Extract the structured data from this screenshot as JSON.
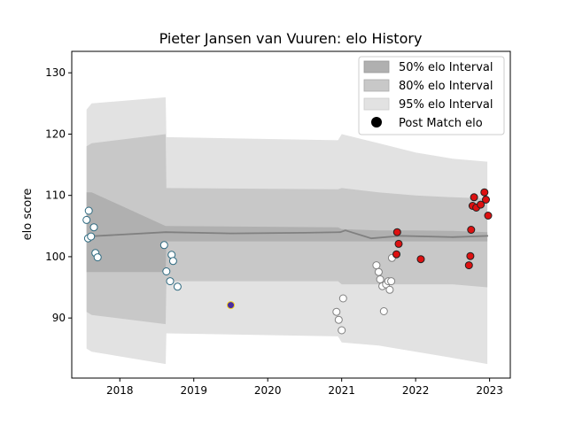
{
  "chart_data": {
    "type": "scatter",
    "title": "Pieter Jansen van Vuuren: elo History",
    "xlabel": "",
    "ylabel": "elo score",
    "xlim": [
      2017.35,
      2023.28
    ],
    "ylim": [
      80.2,
      133.5
    ],
    "xticks": [
      2018,
      2019,
      2020,
      2021,
      2022,
      2023
    ],
    "xtick_labels": [
      "2018",
      "2019",
      "2020",
      "2021",
      "2022",
      "2023"
    ],
    "yticks": [
      90,
      100,
      110,
      120,
      130
    ],
    "ytick_labels": [
      "90",
      "100",
      "110",
      "120",
      "130"
    ],
    "grid": false,
    "legend_position": "top-right",
    "legend": [
      {
        "label": "50% elo Interval",
        "kind": "patch",
        "color": "#b0b0b0"
      },
      {
        "label": "80% elo Interval",
        "kind": "patch",
        "color": "#c8c8c8"
      },
      {
        "label": "95% elo Interval",
        "kind": "patch",
        "color": "#e2e2e2"
      },
      {
        "label": "Post Match elo",
        "kind": "marker",
        "color": "#000000"
      }
    ],
    "bands": [
      {
        "name": "95% elo Interval",
        "color": "#e2e2e2",
        "x": [
          2017.55,
          2017.62,
          2018.62,
          2018.63,
          2020.95,
          2021.0,
          2021.5,
          2022.0,
          2022.5,
          2022.97
        ],
        "upper": [
          124.0,
          125.0,
          126.0,
          119.5,
          119.0,
          120.0,
          118.5,
          117.0,
          116.0,
          115.5
        ],
        "lower": [
          85.0,
          84.5,
          82.5,
          87.5,
          87.0,
          86.0,
          85.5,
          84.5,
          83.5,
          82.5
        ]
      },
      {
        "name": "80% elo Interval",
        "color": "#c8c8c8",
        "x": [
          2017.55,
          2017.62,
          2018.62,
          2018.63,
          2020.95,
          2021.0,
          2021.5,
          2022.0,
          2022.5,
          2022.97
        ],
        "upper": [
          118.0,
          118.5,
          120.0,
          111.2,
          111.0,
          111.2,
          110.5,
          110.0,
          109.7,
          109.5
        ],
        "lower": [
          91.0,
          90.5,
          89.0,
          96.0,
          96.0,
          95.5,
          95.5,
          95.5,
          95.5,
          95.0
        ]
      },
      {
        "name": "50% elo Interval",
        "color": "#b0b0b0",
        "x": [
          2017.55,
          2017.62,
          2018.62,
          2018.63,
          2020.95,
          2021.0,
          2021.5,
          2022.0,
          2022.5,
          2022.97
        ],
        "upper": [
          110.5,
          110.5,
          105.0,
          105.0,
          104.8,
          104.5,
          104.3,
          104.3,
          104.2,
          104.0
        ],
        "lower": [
          97.5,
          97.5,
          97.5,
          102.5,
          102.5,
          102.5,
          102.5,
          102.5,
          102.5,
          102.5
        ]
      }
    ],
    "mean_line": {
      "color": "#808080",
      "x": [
        2017.55,
        2018.62,
        2019.5,
        2020.5,
        2020.98,
        2021.05,
        2021.4,
        2021.8,
        2022.5,
        2022.98
      ],
      "y": [
        103.3,
        104.0,
        103.8,
        103.9,
        104.0,
        104.3,
        103.0,
        103.4,
        103.2,
        103.4
      ]
    },
    "series": [
      {
        "face": "#ffffff",
        "edge": "#2e6a80",
        "points": [
          [
            2017.55,
            106.0
          ],
          [
            2017.58,
            107.5
          ],
          [
            2017.57,
            103.0
          ],
          [
            2017.61,
            103.3
          ],
          [
            2017.65,
            104.8
          ],
          [
            2017.67,
            100.6
          ],
          [
            2017.7,
            99.9
          ],
          [
            2018.6,
            101.9
          ],
          [
            2018.63,
            97.6
          ],
          [
            2018.68,
            96.0
          ],
          [
            2018.7,
            100.3
          ],
          [
            2018.72,
            99.3
          ],
          [
            2018.78,
            95.1
          ]
        ]
      },
      {
        "face": "#4a2ca0",
        "edge": "#f2d020",
        "points": [
          [
            2019.5,
            92.1
          ]
        ]
      },
      {
        "face": "#ffffff",
        "edge": "#808080",
        "points": [
          [
            2020.93,
            91.0
          ],
          [
            2020.96,
            89.7
          ],
          [
            2021.0,
            88.0
          ],
          [
            2021.02,
            93.2
          ],
          [
            2021.47,
            98.6
          ],
          [
            2021.5,
            97.5
          ],
          [
            2021.52,
            96.3
          ],
          [
            2021.55,
            95.2
          ],
          [
            2021.57,
            91.1
          ],
          [
            2021.6,
            95.5
          ],
          [
            2021.63,
            96.0
          ],
          [
            2021.65,
            94.6
          ],
          [
            2021.67,
            96.0
          ],
          [
            2021.68,
            99.8
          ]
        ]
      },
      {
        "face": "#dd1111",
        "edge": "#222222",
        "points": [
          [
            2021.75,
            104.0
          ],
          [
            2021.77,
            102.1
          ],
          [
            2021.74,
            100.4
          ],
          [
            2022.07,
            99.6
          ],
          [
            2022.72,
            98.6
          ],
          [
            2022.74,
            100.1
          ],
          [
            2022.75,
            104.4
          ],
          [
            2022.77,
            108.3
          ],
          [
            2022.79,
            109.7
          ],
          [
            2022.82,
            108.0
          ],
          [
            2022.88,
            108.5
          ],
          [
            2022.93,
            110.5
          ],
          [
            2022.95,
            109.3
          ],
          [
            2022.98,
            106.7
          ]
        ]
      }
    ]
  }
}
